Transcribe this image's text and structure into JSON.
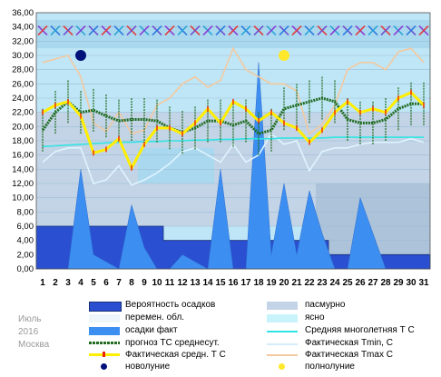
{
  "chart_data": {
    "type": "line",
    "ylim": [
      0,
      36
    ],
    "yticks": [
      "0,00",
      "2,00",
      "4,00",
      "6,00",
      "8,00",
      "10,00",
      "12,00",
      "14,00",
      "16,00",
      "18,00",
      "20,00",
      "22,00",
      "24,00",
      "26,00",
      "28,00",
      "30,00",
      "32,00",
      "34,00",
      "36,00"
    ],
    "x": [
      1,
      2,
      3,
      4,
      5,
      6,
      7,
      8,
      9,
      10,
      11,
      12,
      13,
      14,
      15,
      16,
      17,
      18,
      19,
      20,
      21,
      22,
      23,
      24,
      25,
      26,
      27,
      28,
      29,
      30,
      31
    ],
    "series": [
      {
        "name": "Вероятность осадков",
        "color": "#2a4fd0",
        "values": [
          6,
          6,
          6,
          6,
          6,
          6,
          6,
          6,
          6,
          6,
          4,
          4,
          4,
          4,
          4,
          4,
          4,
          4,
          4,
          4,
          4,
          4,
          4,
          2,
          2,
          2,
          2,
          2,
          2,
          2,
          2
        ]
      },
      {
        "name": "осадки факт",
        "color": "#3c8ef0",
        "values": [
          0,
          0,
          0,
          14,
          2,
          1,
          0,
          9,
          3,
          0,
          0,
          2,
          1,
          0,
          14,
          0,
          0,
          29,
          2,
          12,
          2,
          11,
          5,
          0,
          0,
          10,
          5,
          0,
          0,
          0,
          0
        ]
      },
      {
        "name": "Средняя многолетняя Т С",
        "color": "#33e3e3",
        "values": [
          17.2,
          17.3,
          17.4,
          17.5,
          17.6,
          17.7,
          17.8,
          17.8,
          17.9,
          17.9,
          18.0,
          18.0,
          18.1,
          18.1,
          18.2,
          18.2,
          18.3,
          18.3,
          18.3,
          18.4,
          18.4,
          18.4,
          18.4,
          18.5,
          18.5,
          18.5,
          18.5,
          18.5,
          18.5,
          18.5,
          18.5
        ]
      },
      {
        "name": "прогноз ТС среднесут.",
        "color": "#1f6b1f",
        "values": [
          19.5,
          22.0,
          23.5,
          22.0,
          22.3,
          21.5,
          20.8,
          21.0,
          21.0,
          20.8,
          19.8,
          19.2,
          19.8,
          20.8,
          20.8,
          20.2,
          20.8,
          19.0,
          19.5,
          22.5,
          23.0,
          23.5,
          24.0,
          23.5,
          21.0,
          20.5,
          20.5,
          21.0,
          22.5,
          23.2,
          23.2
        ]
      },
      {
        "name": "Фактическая Tmin, С",
        "color": "#e0f4ff",
        "values": [
          15,
          16.5,
          17,
          17,
          12,
          12.5,
          14.5,
          11.8,
          12.5,
          13.5,
          14.8,
          16.5,
          17,
          16,
          15,
          17.5,
          15,
          16,
          19,
          17.5,
          18,
          13.8,
          16.5,
          17,
          17,
          17.5,
          17.8,
          17.8,
          17.8,
          18.3,
          17.8
        ]
      },
      {
        "name": "Фактическая средн. Т С",
        "color": "#ffee00",
        "values": [
          22,
          23,
          23.5,
          21.5,
          16.3,
          16.8,
          18.3,
          14.2,
          17.5,
          19.8,
          19.8,
          19,
          20.5,
          22.5,
          20.5,
          23.5,
          22.5,
          20.8,
          22,
          20.5,
          19.8,
          17.8,
          19.5,
          22,
          23.5,
          22,
          22.5,
          22,
          24,
          24.8,
          23
        ]
      },
      {
        "name": "Фактическая Tmax С",
        "color": "#f3c9a0",
        "values": [
          29.0,
          29.5,
          30.0,
          27,
          20.5,
          19.3,
          22,
          19,
          19.5,
          23,
          24,
          26,
          27,
          25.5,
          26.5,
          31,
          28,
          27,
          26,
          26,
          25,
          19,
          20.3,
          23,
          28,
          29,
          29,
          28,
          30.5,
          31,
          29
        ]
      }
    ],
    "legend": [
      "Вероятность осадков",
      "пасмурно",
      "перемен. обл.",
      "ясно",
      "осадки факт",
      "Средняя многолетняя Т С",
      "прогноз ТС среднесут.",
      "Фактическая Tmin, С",
      "Фактическая средн. Т С",
      "Фактическая Tmax С",
      "новолуние",
      "полнолуние"
    ],
    "new_moon_day": 4,
    "full_moon_day": 20,
    "colors": {
      "clear": "#bfe6f6",
      "variable": "#aad8ee",
      "overcast": "#c2d4e6",
      "overcast_band": "#adc3da",
      "background": "#ffffff"
    }
  },
  "meta": {
    "month": "Июль",
    "year": "2016",
    "city": "Москва"
  }
}
